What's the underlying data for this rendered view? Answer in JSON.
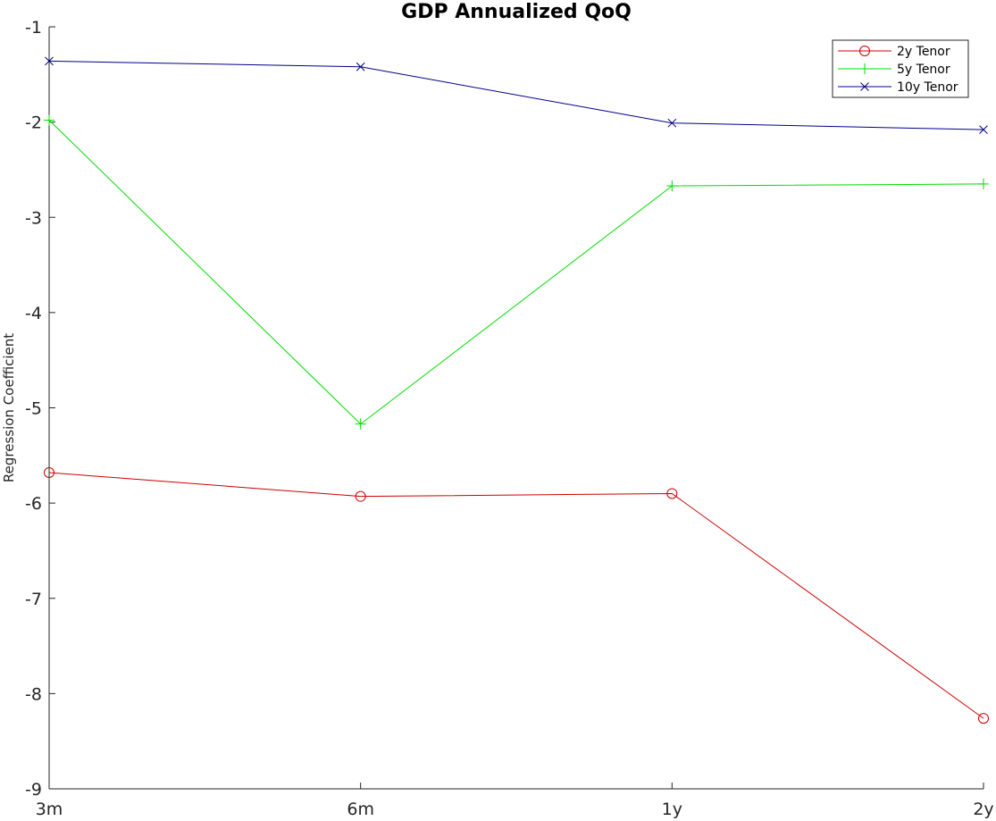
{
  "chart_data": {
    "type": "line",
    "title": "GDP Annualized QoQ",
    "xlabel": "",
    "ylabel": "Regression Coefficient",
    "categories": [
      "3m",
      "6m",
      "1y",
      "2y"
    ],
    "ylim": [
      -9,
      -1
    ],
    "yticks": [
      -9,
      -8,
      -7,
      -6,
      -5,
      -4,
      -3,
      -2,
      -1
    ],
    "grid": false,
    "legend_position": "top-right",
    "series": [
      {
        "name": "2y Tenor",
        "color": "#cc0000",
        "marker": "circle",
        "values": [
          -5.68,
          -5.93,
          -5.9,
          -8.26
        ]
      },
      {
        "name": "5y Tenor",
        "color": "#00dd00",
        "marker": "plus",
        "values": [
          -1.98,
          -5.17,
          -2.67,
          -2.65
        ]
      },
      {
        "name": "10y Tenor",
        "color": "#00008b",
        "marker": "x",
        "values": [
          -1.36,
          -1.42,
          -2.01,
          -2.08
        ]
      }
    ]
  }
}
